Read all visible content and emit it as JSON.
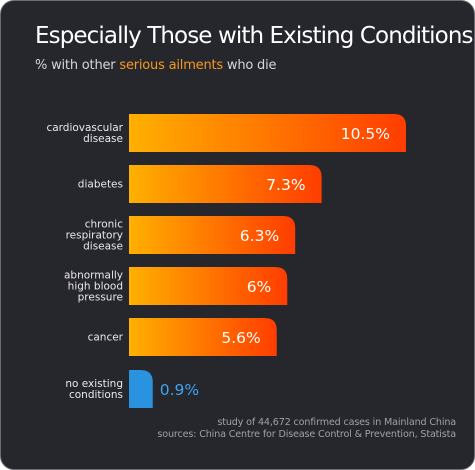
{
  "header": {
    "title": "Especially Those with Existing Conditions",
    "subtitle_pre": "% with other ",
    "subtitle_highlight": "serious ailments",
    "subtitle_post": " who die"
  },
  "footer": {
    "line1": "study of 44,672 confirmed cases in Mainland China",
    "line2": "sources: China Centre for Disease Control & Prevention, Statista"
  },
  "colors": {
    "background": "#26262d",
    "bar_gradient_start": "#ffb000",
    "bar_gradient_end": "#ff3d00",
    "highlight_bar": "#2a93e0",
    "highlight_text": "#3fa3f0",
    "subtitle_accent": "#f59a21"
  },
  "chart_data": {
    "type": "bar",
    "orientation": "horizontal",
    "categories": [
      [
        "cardiovascular",
        "disease"
      ],
      [
        "diabetes"
      ],
      [
        "chronic",
        "respiratory",
        "disease"
      ],
      [
        "abnormally",
        "high blood",
        "pressure"
      ],
      [
        "cancer"
      ],
      [
        "no existing",
        "conditions"
      ]
    ],
    "values": [
      10.5,
      7.3,
      6.3,
      6,
      5.6,
      0.9
    ],
    "labels": [
      "10.5%",
      "7.3%",
      "6.3%",
      "6%",
      "5.6%",
      "0.9%"
    ],
    "unit": "%",
    "grid": false,
    "xlim": [
      0,
      10.5
    ]
  }
}
